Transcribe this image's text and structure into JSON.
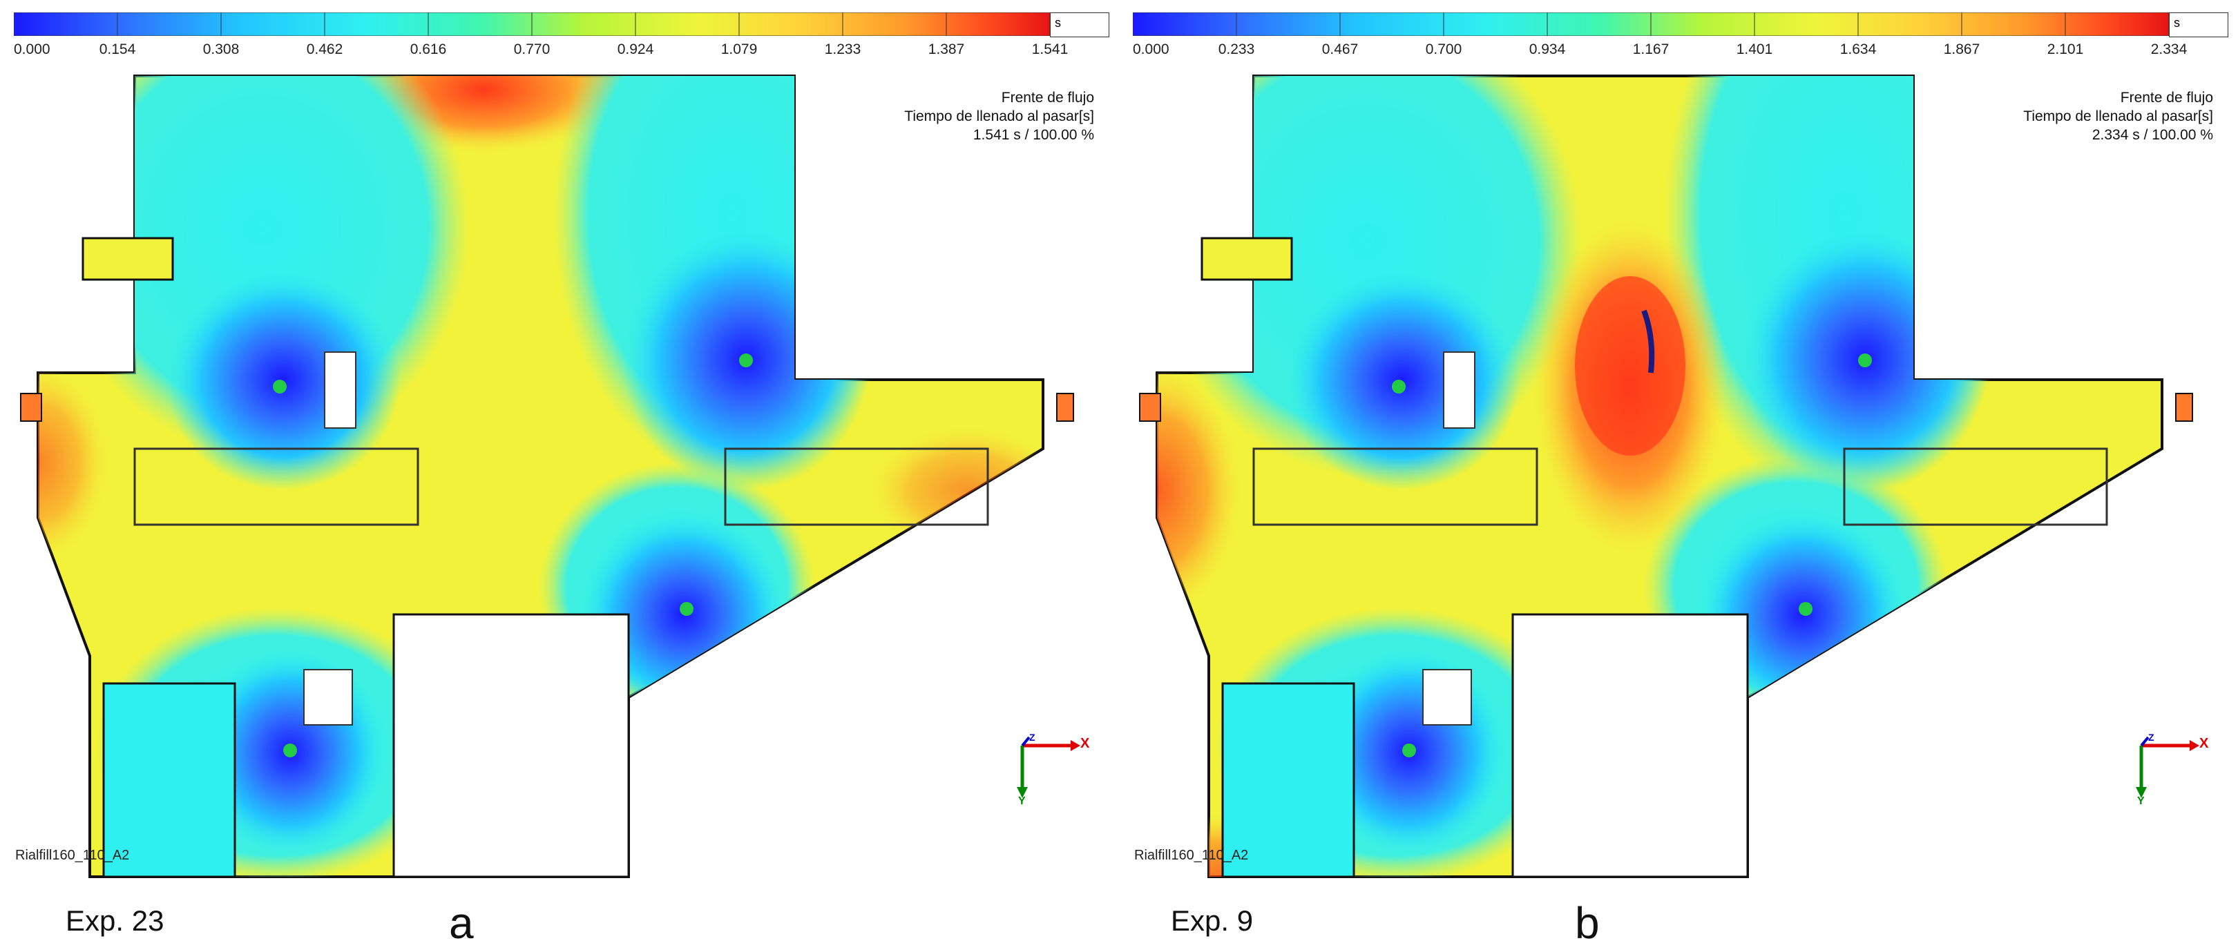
{
  "panels": [
    {
      "colorbar": {
        "unit": "s",
        "ticks": [
          "0.000",
          "0.154",
          "0.308",
          "0.462",
          "0.616",
          "0.770",
          "0.924",
          "1.079",
          "1.233",
          "1.387",
          "1.541"
        ]
      },
      "legend": {
        "line1": "Frente de flujo",
        "line2": "Tiempo de llenado al pasar[s]",
        "line3": "1.541 s  /  100.00 %"
      },
      "model_label": "Rialfill160_110_A2",
      "axes": {
        "x": "X",
        "y": "Y",
        "z": "Z"
      },
      "experiment": "Exp. 23",
      "letter": "a"
    },
    {
      "colorbar": {
        "unit": "s",
        "ticks": [
          "0.000",
          "0.233",
          "0.467",
          "0.700",
          "0.934",
          "1.167",
          "1.401",
          "1.634",
          "1.867",
          "2.101",
          "2.334"
        ]
      },
      "legend": {
        "line1": "Frente de flujo",
        "line2": "Tiempo de llenado al pasar[s]",
        "line3": "2.334 s  /  100.00 %"
      },
      "model_label": "Rialfill160_110_A2",
      "axes": {
        "x": "X",
        "y": "Y",
        "z": "Z"
      },
      "experiment": "Exp. 9",
      "letter": "b"
    }
  ],
  "colors": {
    "scale": [
      "#1a1aff",
      "#2f6bff",
      "#22c6ff",
      "#2ff0f0",
      "#3ff5b0",
      "#b6f53a",
      "#eef53a",
      "#ffd23a",
      "#ff9a2a",
      "#ff4a1f",
      "#e61414"
    ],
    "gate_marker": "#22cc44"
  }
}
